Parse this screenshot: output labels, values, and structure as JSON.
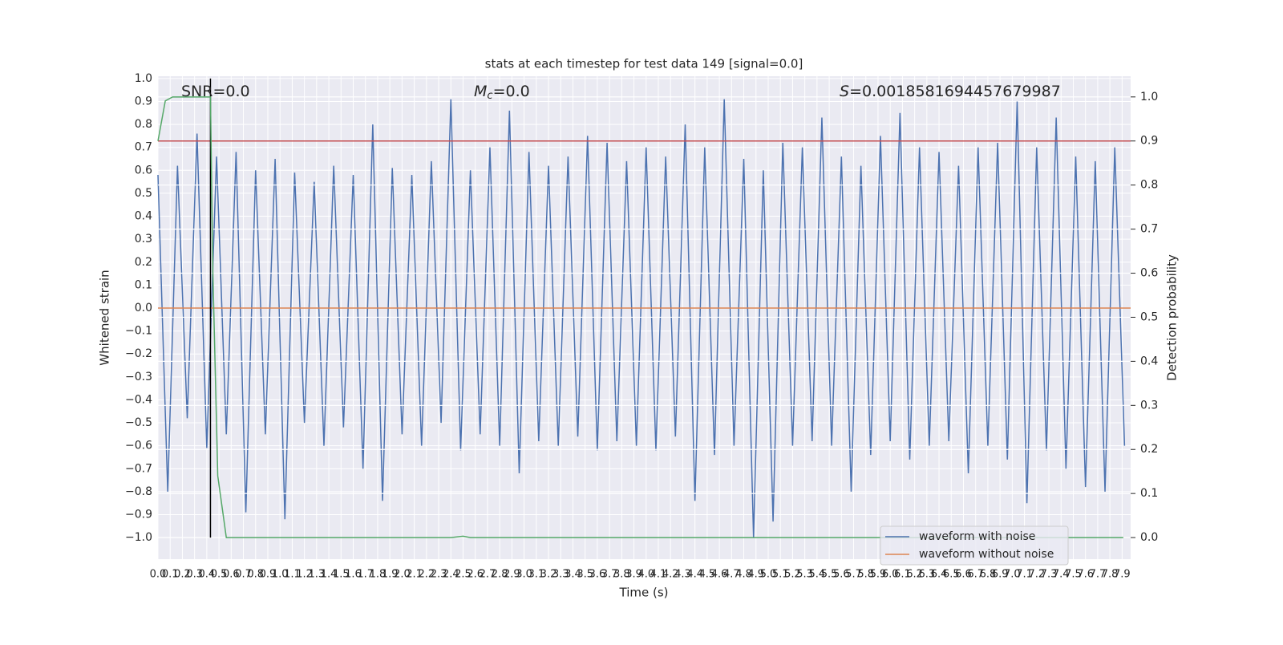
{
  "chart_data": {
    "type": "line",
    "title": "stats at each timestep for test data 149 [signal=0.0]",
    "x_label": "Time (s)",
    "y_label": "Whitened strain",
    "y2_label": "Detection probability",
    "grid": true,
    "legend": "lower right",
    "xlim": [
      0,
      7.97
    ],
    "ylim": [
      -1.094,
      1.01
    ],
    "y2lim": [
      -0.049,
      1.047
    ],
    "xticks": [
      {
        "value": 0,
        "label": "0.0"
      },
      0.1,
      0.2,
      0.3,
      0.4,
      0.5,
      0.6,
      0.7,
      0.8,
      0.9,
      {
        "value": 1,
        "label": "1.0"
      },
      1.1,
      1.2,
      1.3,
      1.4,
      1.5,
      1.6,
      1.7,
      1.8,
      1.9,
      {
        "value": 2,
        "label": "2.0"
      },
      2.1,
      2.2,
      2.3,
      2.4,
      2.5,
      2.6,
      2.7,
      2.8,
      2.9,
      {
        "value": 3,
        "label": "3.0"
      },
      3.1,
      3.2,
      3.3,
      3.4,
      3.5,
      3.6,
      3.7,
      3.8,
      3.9,
      {
        "value": 4,
        "label": "4.0"
      },
      4.1,
      4.2,
      4.3,
      4.4,
      4.5,
      4.6,
      4.7,
      4.8,
      4.9,
      {
        "value": 5,
        "label": "5.0"
      },
      5.1,
      5.2,
      5.3,
      5.4,
      5.5,
      5.6,
      5.7,
      5.8,
      5.9,
      {
        "value": 6,
        "label": "6.0"
      },
      6.1,
      6.2,
      6.3,
      6.4,
      6.5,
      6.6,
      6.7,
      6.8,
      6.9,
      {
        "value": 7,
        "label": "7.0"
      },
      7.1,
      7.2,
      7.3,
      7.4,
      7.5,
      7.6,
      7.7,
      7.8,
      7.9
    ],
    "yticks": [
      {
        "value": -1,
        "label": "−1.0"
      },
      {
        "value": -0.9,
        "label": "−0.9"
      },
      {
        "value": -0.8,
        "label": "−0.8"
      },
      {
        "value": -0.7,
        "label": "−0.7"
      },
      {
        "value": -0.6,
        "label": "−0.6"
      },
      {
        "value": -0.5,
        "label": "−0.5"
      },
      {
        "value": -0.4,
        "label": "−0.4"
      },
      {
        "value": -0.3,
        "label": "−0.3"
      },
      {
        "value": -0.2,
        "label": "−0.2"
      },
      {
        "value": -0.1,
        "label": "−0.1"
      },
      {
        "value": 0,
        "label": "0.0"
      },
      0.1,
      0.2,
      0.3,
      0.4,
      0.5,
      0.6,
      0.7,
      0.8,
      0.9,
      {
        "value": 1,
        "label": "1.0"
      }
    ],
    "y2ticks": [
      {
        "value": 0,
        "label": "0.0"
      },
      0.1,
      0.2,
      0.3,
      0.4,
      0.5,
      0.6,
      0.7,
      0.8,
      0.9,
      {
        "value": 1,
        "label": "1.0"
      }
    ],
    "series": [
      {
        "name": "waveform with noise",
        "color": "#4c72b0",
        "x": [
          0.0,
          0.08,
          0.16,
          0.24,
          0.32,
          0.4,
          0.48,
          0.56,
          0.64,
          0.72,
          0.8,
          0.88,
          0.96,
          1.04,
          1.12,
          1.2,
          1.28,
          1.36,
          1.44,
          1.52,
          1.6,
          1.68,
          1.76,
          1.84,
          1.92,
          2.0,
          2.08,
          2.16,
          2.24,
          2.32,
          2.4,
          2.48,
          2.56,
          2.64,
          2.72,
          2.8,
          2.88,
          2.96,
          3.04,
          3.12,
          3.2,
          3.28,
          3.36,
          3.44,
          3.52,
          3.6,
          3.68,
          3.76,
          3.84,
          3.92,
          4.0,
          4.08,
          4.16,
          4.24,
          4.32,
          4.4,
          4.48,
          4.56,
          4.64,
          4.72,
          4.8,
          4.88,
          4.96,
          5.04,
          5.12,
          5.2,
          5.28,
          5.36,
          5.44,
          5.52,
          5.6,
          5.68,
          5.76,
          5.84,
          5.92,
          6.0,
          6.08,
          6.16,
          6.24,
          6.32,
          6.4,
          6.48,
          6.56,
          6.64,
          6.72,
          6.8,
          6.88,
          6.96,
          7.04,
          7.12,
          7.2,
          7.28,
          7.36,
          7.44,
          7.52,
          7.6,
          7.68,
          7.76,
          7.84,
          7.92
        ],
        "values": [
          0.58,
          -0.8,
          0.62,
          -0.48,
          0.76,
          -0.61,
          0.66,
          -0.55,
          0.68,
          -0.89,
          0.6,
          -0.55,
          0.65,
          -0.92,
          0.59,
          -0.5,
          0.55,
          -0.6,
          0.62,
          -0.52,
          0.58,
          -0.7,
          0.8,
          -0.84,
          0.61,
          -0.55,
          0.58,
          -0.6,
          0.64,
          -0.5,
          0.91,
          -0.62,
          0.6,
          -0.55,
          0.7,
          -0.6,
          0.86,
          -0.72,
          0.68,
          -0.58,
          0.62,
          -0.6,
          0.66,
          -0.56,
          0.75,
          -0.62,
          0.72,
          -0.58,
          0.64,
          -0.6,
          0.7,
          -0.62,
          0.66,
          -0.56,
          0.8,
          -0.84,
          0.7,
          -0.64,
          0.91,
          -0.6,
          0.65,
          -1.0,
          0.6,
          -0.93,
          0.72,
          -0.6,
          0.7,
          -0.58,
          0.83,
          -0.6,
          0.66,
          -0.8,
          0.62,
          -0.64,
          0.75,
          -0.58,
          0.85,
          -0.66,
          0.7,
          -0.6,
          0.68,
          -0.58,
          0.62,
          -0.72,
          0.7,
          -0.6,
          0.72,
          -0.66,
          0.9,
          -0.85,
          0.7,
          -0.62,
          0.83,
          -0.7,
          0.66,
          -0.78,
          0.64,
          -0.8,
          0.7,
          -0.6
        ]
      },
      {
        "name": "waveform without noise",
        "color": "#dd8452",
        "x": [
          0,
          7.97
        ],
        "values": [
          0,
          0
        ]
      }
    ],
    "probability": {
      "color": "#55a868",
      "axis": "y2",
      "x": [
        0,
        0.06,
        0.12,
        0.43,
        0.45,
        0.49,
        0.56,
        2.4,
        2.5,
        2.56,
        7.91
      ],
      "values": [
        0.9,
        0.991,
        1.0,
        1.0,
        0.6,
        0.14,
        0,
        0,
        0.003,
        0,
        0
      ]
    },
    "hlines": [
      {
        "value": 0.9,
        "axis": "y2",
        "color": "#c44e52"
      }
    ],
    "vlines": [
      {
        "x": 0.43,
        "ymin": -1,
        "ymax": 1,
        "color": "#000000"
      }
    ],
    "annotations": [
      [
        {
          "text": "SNR=0.0",
          "style": "normal"
        }
      ],
      [
        {
          "text": "M",
          "style": "italic"
        },
        {
          "text": "c",
          "style": "subscript"
        },
        {
          "text": "=0.0",
          "style": "normal"
        }
      ],
      [
        {
          "text": "S",
          "style": "italic"
        },
        {
          "text": "=0.0018581694457679987",
          "style": "normal"
        }
      ]
    ]
  }
}
